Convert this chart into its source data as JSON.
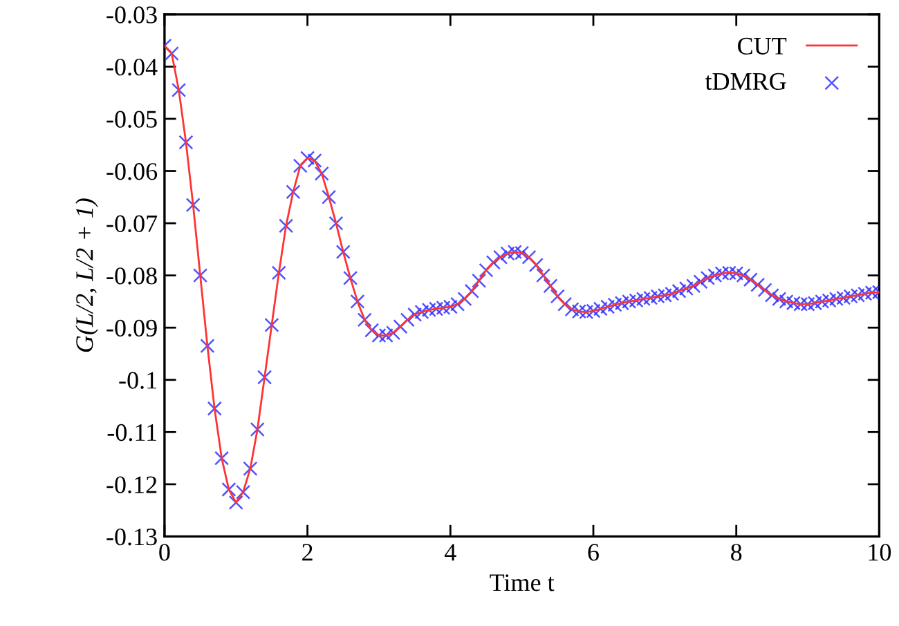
{
  "chart_data": {
    "type": "line",
    "xlabel": "Time t",
    "ylabel": "G(L/2, L/2 + 1)",
    "x": [
      0.0,
      0.1,
      0.2,
      0.3,
      0.4,
      0.5,
      0.6,
      0.7,
      0.8,
      0.9,
      1.0,
      1.1,
      1.2,
      1.3,
      1.4,
      1.5,
      1.6,
      1.7,
      1.8,
      1.9,
      2.0,
      2.1,
      2.2,
      2.3,
      2.4,
      2.5,
      2.6,
      2.7,
      2.8,
      2.9,
      3.0,
      3.1,
      3.2,
      3.3,
      3.4,
      3.5,
      3.6,
      3.7,
      3.8,
      3.9,
      4.0,
      4.1,
      4.2,
      4.3,
      4.4,
      4.5,
      4.6,
      4.7,
      4.8,
      4.9,
      5.0,
      5.1,
      5.2,
      5.3,
      5.4,
      5.5,
      5.6,
      5.7,
      5.8,
      5.9,
      6.0,
      6.1,
      6.2,
      6.3,
      6.4,
      6.5,
      6.6,
      6.7,
      6.8,
      6.9,
      7.0,
      7.1,
      7.2,
      7.3,
      7.4,
      7.5,
      7.6,
      7.7,
      7.8,
      7.9,
      8.0,
      8.1,
      8.2,
      8.3,
      8.4,
      8.5,
      8.6,
      8.7,
      8.8,
      8.9,
      9.0,
      9.1,
      9.2,
      9.3,
      9.4,
      9.5,
      9.6,
      9.7,
      9.8,
      9.9,
      10.0
    ],
    "series": [
      {
        "name": "CUT",
        "color": "#ff3333",
        "marker": "none",
        "values": [
          -0.036,
          -0.0375,
          -0.0445,
          -0.0545,
          -0.0665,
          -0.08,
          -0.0935,
          -0.1055,
          -0.115,
          -0.121,
          -0.1235,
          -0.1215,
          -0.117,
          -0.1095,
          -0.0995,
          -0.0895,
          -0.0795,
          -0.0705,
          -0.064,
          -0.059,
          -0.0575,
          -0.058,
          -0.0605,
          -0.065,
          -0.07,
          -0.0755,
          -0.0805,
          -0.085,
          -0.0885,
          -0.0905,
          -0.0915,
          -0.0915,
          -0.091,
          -0.0898,
          -0.0885,
          -0.0875,
          -0.087,
          -0.0866,
          -0.0864,
          -0.0862,
          -0.086,
          -0.0855,
          -0.0845,
          -0.083,
          -0.081,
          -0.079,
          -0.0775,
          -0.0765,
          -0.0758,
          -0.0755,
          -0.0757,
          -0.0765,
          -0.078,
          -0.08,
          -0.082,
          -0.084,
          -0.0855,
          -0.0865,
          -0.0869,
          -0.087,
          -0.0868,
          -0.0864,
          -0.086,
          -0.0856,
          -0.0853,
          -0.085,
          -0.0848,
          -0.0845,
          -0.0843,
          -0.084,
          -0.0838,
          -0.0835,
          -0.083,
          -0.0825,
          -0.082,
          -0.0812,
          -0.0805,
          -0.08,
          -0.0796,
          -0.0795,
          -0.0796,
          -0.08,
          -0.0808,
          -0.0818,
          -0.0828,
          -0.0838,
          -0.0845,
          -0.085,
          -0.0853,
          -0.0855,
          -0.0855,
          -0.0853,
          -0.085,
          -0.0848,
          -0.0845,
          -0.0843,
          -0.084,
          -0.0838,
          -0.0835,
          -0.0833,
          -0.0832
        ]
      },
      {
        "name": "tDMRG",
        "type": "scatter",
        "color": "#3333ff",
        "marker": "cross",
        "values": [
          -0.036,
          -0.0375,
          -0.0445,
          -0.0545,
          -0.0665,
          -0.08,
          -0.0935,
          -0.1055,
          -0.115,
          -0.121,
          -0.1235,
          -0.1215,
          -0.117,
          -0.1095,
          -0.0995,
          -0.0895,
          -0.0795,
          -0.0705,
          -0.064,
          -0.059,
          -0.0575,
          -0.058,
          -0.0605,
          -0.065,
          -0.07,
          -0.0755,
          -0.0805,
          -0.085,
          -0.0885,
          -0.0905,
          -0.0915,
          -0.0915,
          -0.091,
          -0.0898,
          -0.0885,
          -0.0875,
          -0.087,
          -0.0866,
          -0.0864,
          -0.0862,
          -0.086,
          -0.0855,
          -0.0845,
          -0.083,
          -0.081,
          -0.079,
          -0.0775,
          -0.0765,
          -0.0758,
          -0.0755,
          -0.0757,
          -0.0765,
          -0.078,
          -0.08,
          -0.082,
          -0.084,
          -0.0855,
          -0.0865,
          -0.0869,
          -0.087,
          -0.0868,
          -0.0864,
          -0.086,
          -0.0856,
          -0.0853,
          -0.085,
          -0.0848,
          -0.0845,
          -0.0843,
          -0.084,
          -0.0838,
          -0.0835,
          -0.083,
          -0.0825,
          -0.082,
          -0.0812,
          -0.0805,
          -0.08,
          -0.0796,
          -0.0795,
          -0.0796,
          -0.08,
          -0.0808,
          -0.0818,
          -0.0828,
          -0.0838,
          -0.0845,
          -0.085,
          -0.0853,
          -0.0855,
          -0.0855,
          -0.0853,
          -0.085,
          -0.0848,
          -0.0845,
          -0.0843,
          -0.084,
          -0.0838,
          -0.0835,
          -0.0833,
          -0.0832
        ]
      }
    ],
    "xlim": [
      0,
      10
    ],
    "xticks": [
      0,
      2,
      4,
      6,
      8,
      10
    ],
    "ylim": [
      -0.13,
      -0.03
    ],
    "yticks": [
      -0.13,
      -0.12,
      -0.11,
      -0.1,
      -0.09,
      -0.08,
      -0.07,
      -0.06,
      -0.05,
      -0.04,
      -0.03
    ],
    "grid": false,
    "legend": "top right"
  }
}
